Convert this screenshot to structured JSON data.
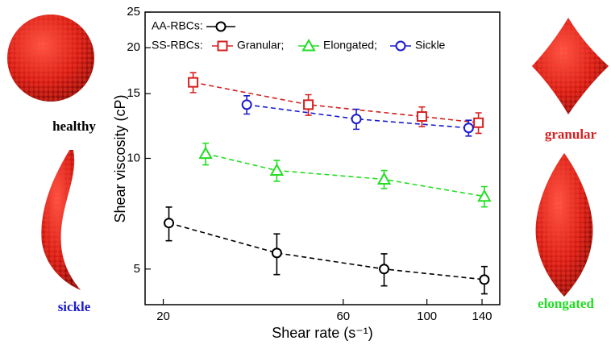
{
  "chart_data": {
    "type": "line",
    "xlabel": "Shear rate (s⁻¹)",
    "ylabel": "Shear viscosity (cP)",
    "xscale": "log",
    "yscale": "log",
    "xlim": [
      17.9,
      156
    ],
    "ylim": [
      4.0,
      25
    ],
    "xticks": [
      20,
      60,
      100,
      140
    ],
    "yticks": [
      5,
      10,
      15,
      20,
      25
    ],
    "legend_group_label": "SS-RBCs:",
    "series": [
      {
        "name": "AA-RBCs:",
        "color": "#000000",
        "marker": "circle",
        "x": [
          20.7,
          40,
          77,
          142
        ],
        "values": [
          6.67,
          5.53,
          5.0,
          4.68
        ],
        "errors": [
          0.7,
          0.7,
          0.5,
          0.4
        ]
      },
      {
        "name": "Granular;",
        "color": "#d62020",
        "marker": "square",
        "x": [
          24,
          48.5,
          97,
          137
        ],
        "values": [
          16.1,
          14.0,
          13.0,
          12.5
        ],
        "errors": [
          1.0,
          0.9,
          0.8,
          0.8
        ]
      },
      {
        "name": "Elongated;",
        "color": "#22dd22",
        "marker": "triangle",
        "x": [
          25.9,
          40,
          77,
          142
        ],
        "values": [
          10.3,
          9.27,
          8.77,
          7.88
        ],
        "errors": [
          0.7,
          0.6,
          0.5,
          0.5
        ]
      },
      {
        "name": "Sickle",
        "color": "#1a1acc",
        "marker": "circle",
        "x": [
          33.3,
          65,
          129
        ],
        "values": [
          14.0,
          12.8,
          12.1
        ],
        "errors": [
          0.8,
          0.8,
          0.6
        ]
      }
    ]
  },
  "cell_labels": {
    "healthy": "healthy",
    "sickle": "sickle",
    "granular": "granular",
    "elongated": "elongated"
  }
}
